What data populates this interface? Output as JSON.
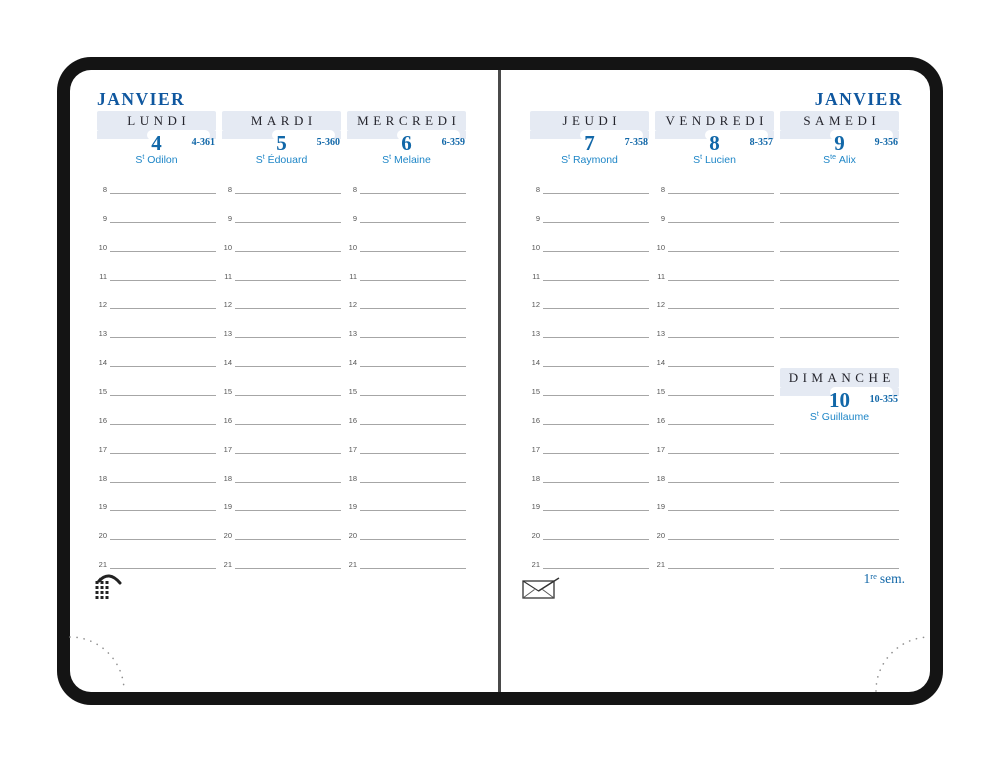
{
  "book": {
    "frame_color": "#141414",
    "page_color": "#ffffff",
    "divider_color": "#4a4a4a"
  },
  "palette": {
    "header_band": "#e5eaf3",
    "month_text": "#0f579f",
    "date_text": "#1167a8",
    "saint_text": "#1e86c7",
    "day_name_text": "#24242c",
    "hour_text": "#555555",
    "rule_line": "#a6a6a6"
  },
  "hours": [
    "8",
    "9",
    "10",
    "11",
    "12",
    "13",
    "14",
    "15",
    "16",
    "17",
    "18",
    "19",
    "20",
    "21"
  ],
  "left_page": {
    "month": "JANVIER",
    "days": [
      {
        "name": "LUNDI",
        "date": "4",
        "day_of_year": "4-361",
        "saint": {
          "prefix": "S",
          "sup": "t",
          "name": "Odilon"
        }
      },
      {
        "name": "MARDI",
        "date": "5",
        "day_of_year": "5-360",
        "saint": {
          "prefix": "S",
          "sup": "t",
          "name": "Édouard"
        }
      },
      {
        "name": "MERCREDI",
        "date": "6",
        "day_of_year": "6-359",
        "saint": {
          "prefix": "S",
          "sup": "t",
          "name": "Melaine"
        }
      }
    ]
  },
  "right_page": {
    "month": "JANVIER",
    "days": [
      {
        "name": "JEUDI",
        "date": "7",
        "day_of_year": "7-358",
        "saint": {
          "prefix": "S",
          "sup": "t",
          "name": "Raymond"
        }
      },
      {
        "name": "VENDREDI",
        "date": "8",
        "day_of_year": "8-357",
        "saint": {
          "prefix": "S",
          "sup": "t",
          "name": "Lucien"
        }
      },
      {
        "name": "SAMEDI",
        "date": "9",
        "day_of_year": "9-356",
        "saint": {
          "prefix": "S",
          "sup": "te",
          "name": "Alix"
        }
      }
    ],
    "sunday": {
      "name": "DIMANCHE",
      "date": "10",
      "day_of_year": "10-355",
      "saint": {
        "prefix": "S",
        "sup": "t",
        "name": "Guillaume"
      }
    },
    "week_label": {
      "number": "1",
      "suffix": "re",
      "text": "sem."
    }
  },
  "icons": {
    "phone": "phone-keypad-icon",
    "envelope": "envelope-icon"
  }
}
